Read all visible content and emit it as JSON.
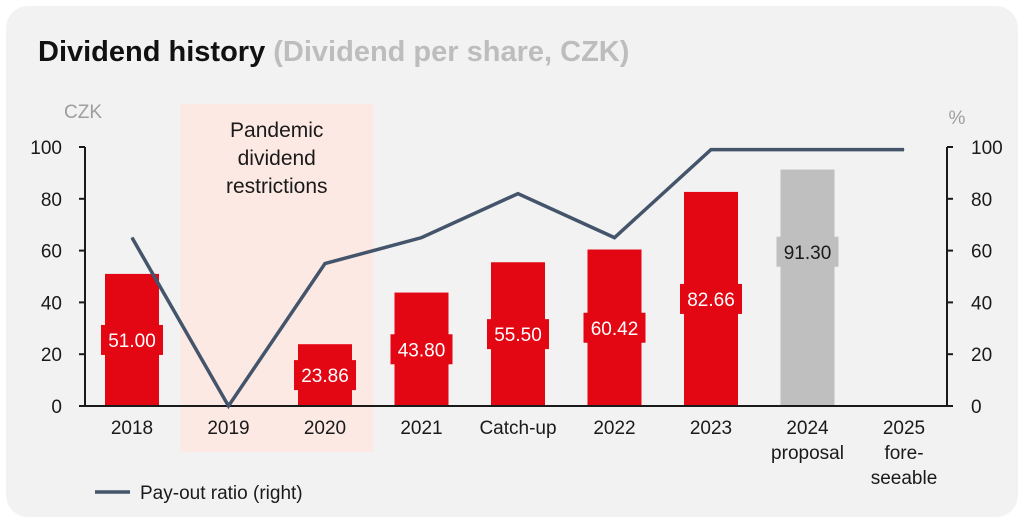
{
  "title": "Dividend history",
  "subtitle": "(Dividend per share, CZK)",
  "chart_data": {
    "type": "bar",
    "categories": [
      [
        "2018"
      ],
      [
        "2019"
      ],
      [
        "2020"
      ],
      [
        "2021"
      ],
      [
        "Catch-up"
      ],
      [
        "2022"
      ],
      [
        "2023"
      ],
      [
        "2024",
        "proposal"
      ],
      [
        "2025",
        "fore-",
        "seeable"
      ]
    ],
    "bars": [
      {
        "value": 51.0,
        "label": "51.00",
        "style": "actual"
      },
      {
        "value": null,
        "label": "",
        "style": "actual"
      },
      {
        "value": 23.86,
        "label": "23.86",
        "style": "actual"
      },
      {
        "value": 43.8,
        "label": "43.80",
        "style": "actual"
      },
      {
        "value": 55.5,
        "label": "55.50",
        "style": "actual"
      },
      {
        "value": 60.42,
        "label": "60.42",
        "style": "actual"
      },
      {
        "value": 82.66,
        "label": "82.66",
        "style": "actual"
      },
      {
        "value": 91.3,
        "label": "91.30",
        "style": "proposal"
      },
      {
        "value": null,
        "label": "",
        "style": "actual"
      }
    ],
    "line": {
      "name": "Pay-out ratio (right)",
      "values": [
        65,
        0,
        55,
        65,
        82,
        65,
        99,
        99,
        99
      ]
    },
    "left_axis": {
      "unit": "CZK",
      "min": 0,
      "max": 100,
      "ticks": [
        "0",
        "20",
        "40",
        "60",
        "80",
        "100"
      ]
    },
    "right_axis": {
      "unit": "%",
      "min": 0,
      "max": 100,
      "ticks": [
        "0",
        "20",
        "40",
        "60",
        "80",
        "100"
      ]
    },
    "annotation": {
      "lines": [
        "Pandemic",
        "dividend",
        "restrictions"
      ],
      "span_categories": [
        1,
        2
      ]
    },
    "legend_position": "bottom-left",
    "colors": {
      "bar": "#e30613",
      "proposal_bar": "#bfbfbf",
      "line": "#44546a",
      "highlight": "#fde9e4",
      "axis": "#1a1a1a",
      "unit_text": "#9e9e9e"
    }
  }
}
